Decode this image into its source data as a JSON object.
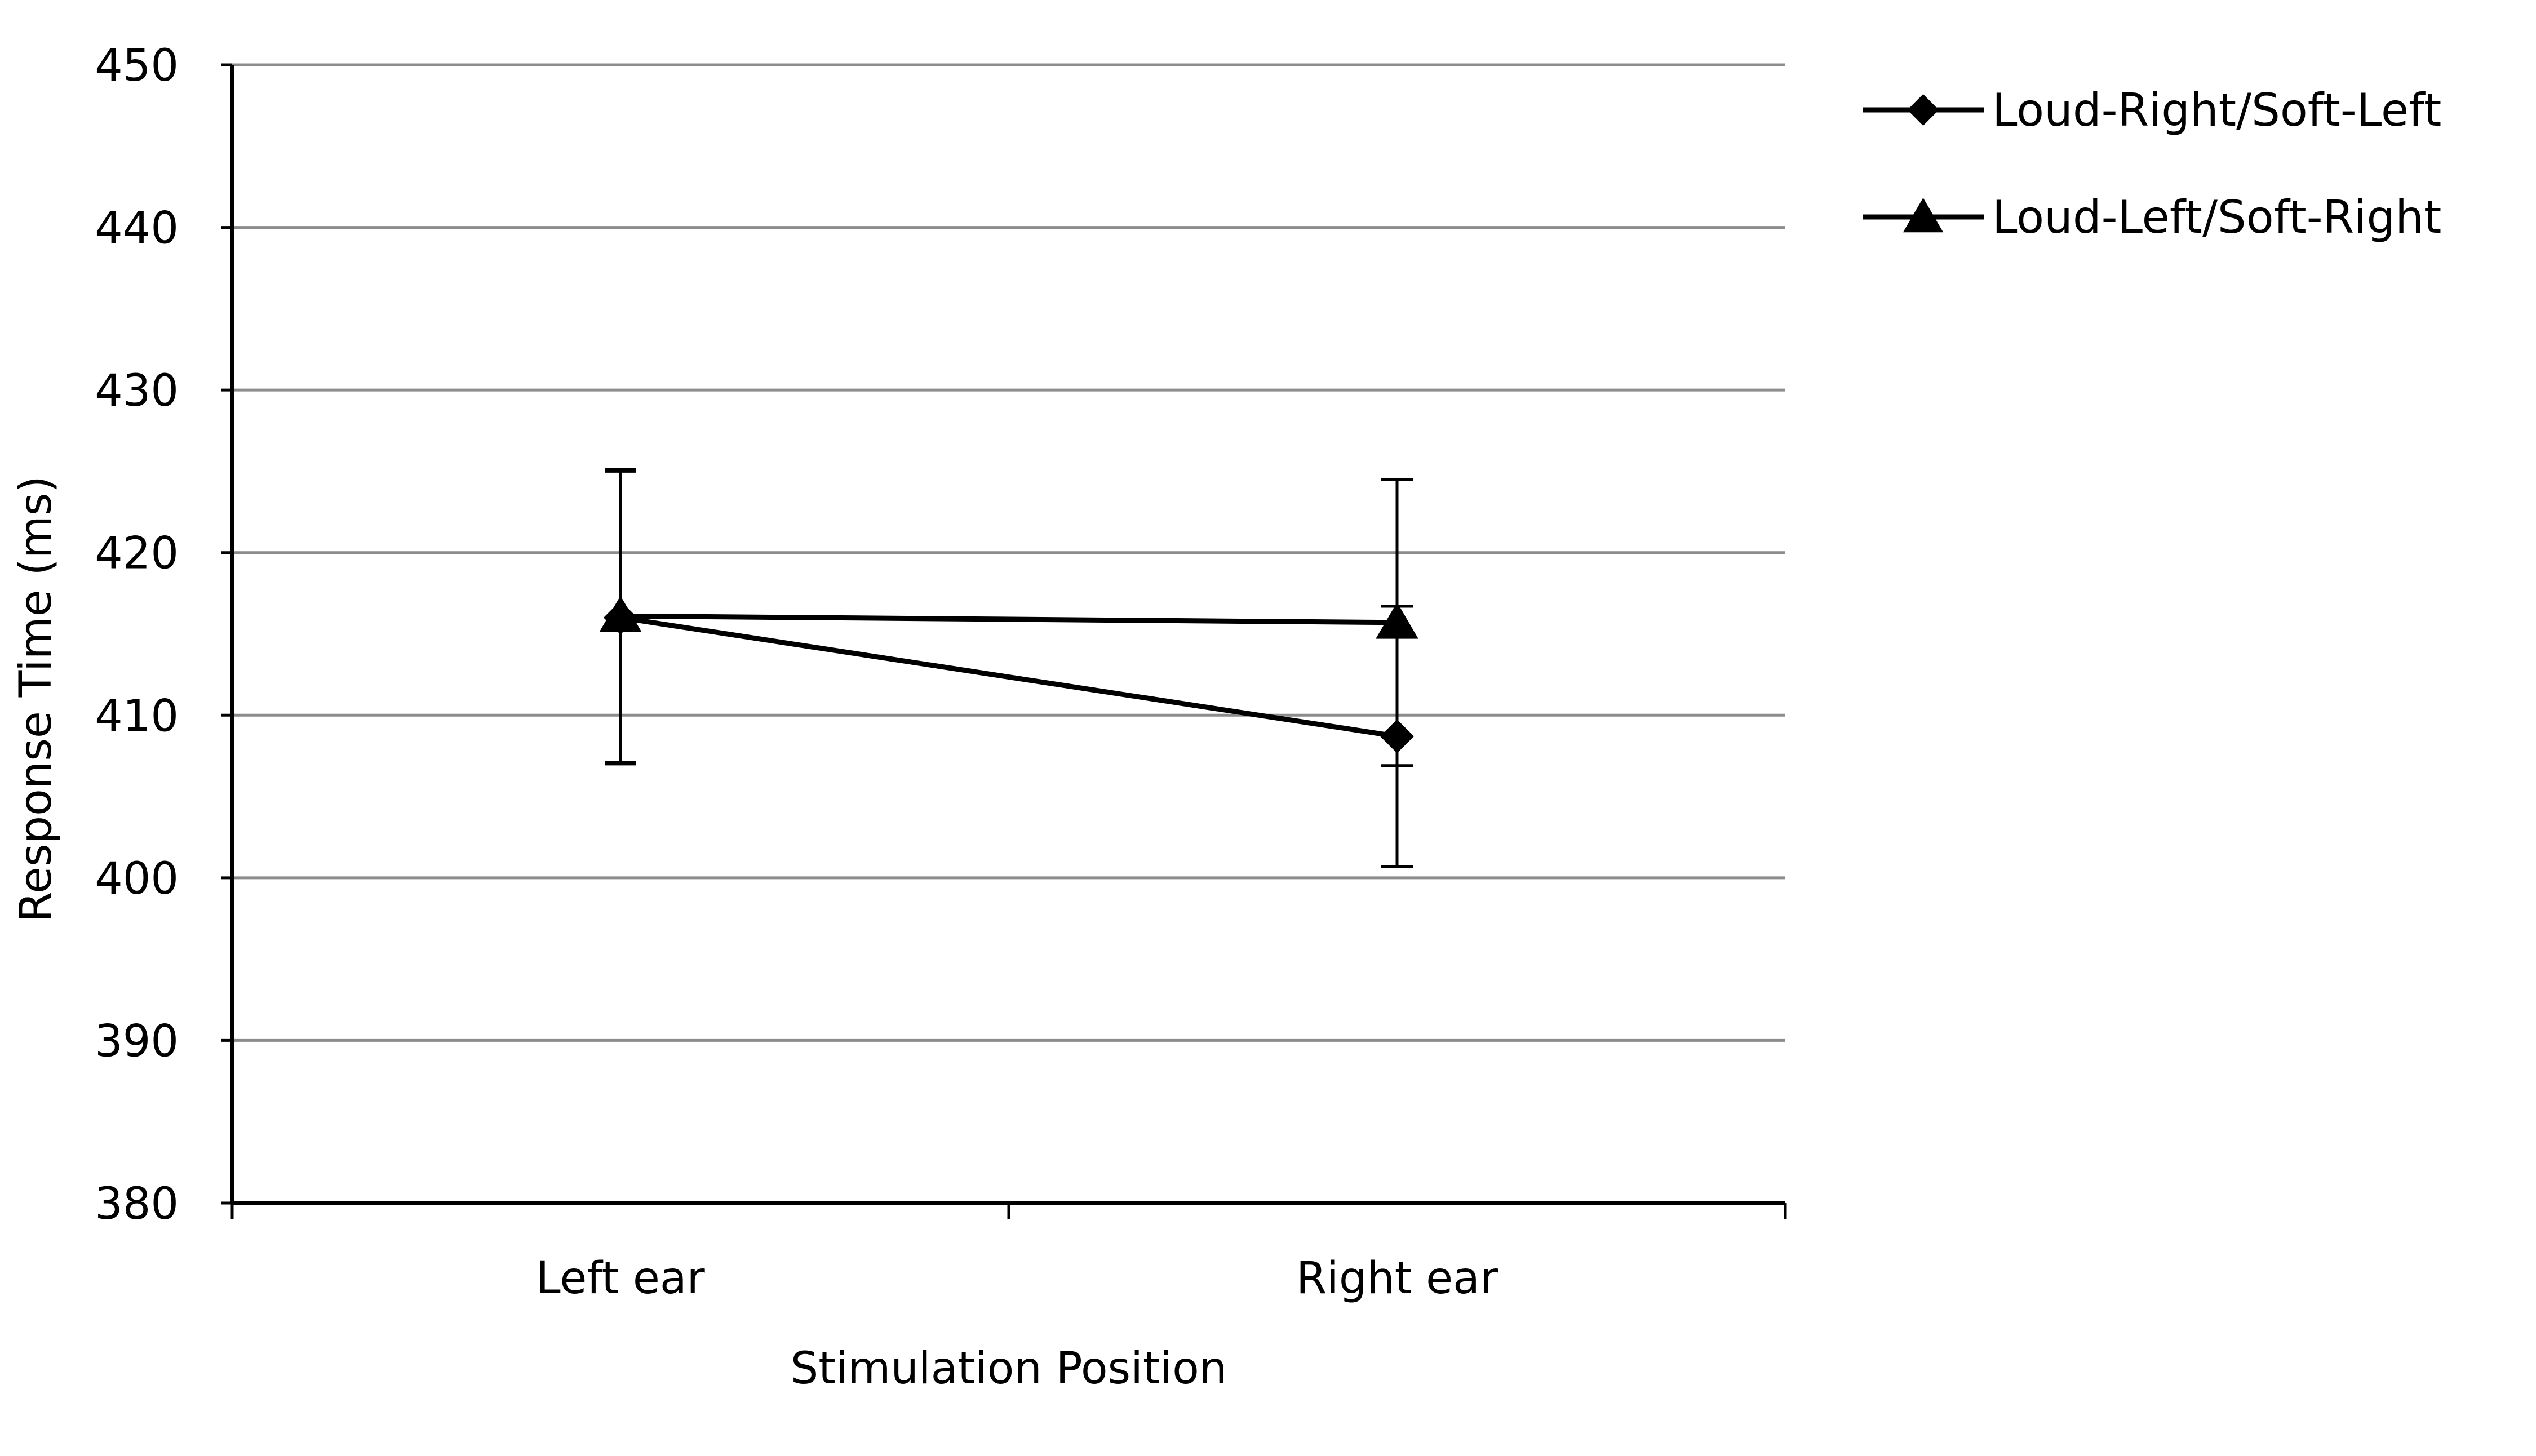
{
  "chart_data": {
    "type": "line",
    "title": "",
    "xlabel": "Stimulation Position",
    "ylabel": "Response Time (ms)",
    "categories": [
      "Left ear",
      "Right ear"
    ],
    "ylim": [
      380,
      450
    ],
    "yticks": [
      "380",
      "390",
      "400",
      "410",
      "420",
      "430",
      "440",
      "450"
    ],
    "grid": true,
    "legend_position": "top-right",
    "series": [
      {
        "name": "Loud-Right/Soft-Left",
        "marker": "diamond",
        "color": "#000000",
        "values": [
          416,
          408.7
        ],
        "error": [
          9,
          8
        ]
      },
      {
        "name": "Loud-Left/Soft-Right",
        "marker": "triangle",
        "color": "#000000",
        "values": [
          416.1,
          415.7
        ],
        "error": [
          9,
          8.8
        ]
      }
    ]
  }
}
